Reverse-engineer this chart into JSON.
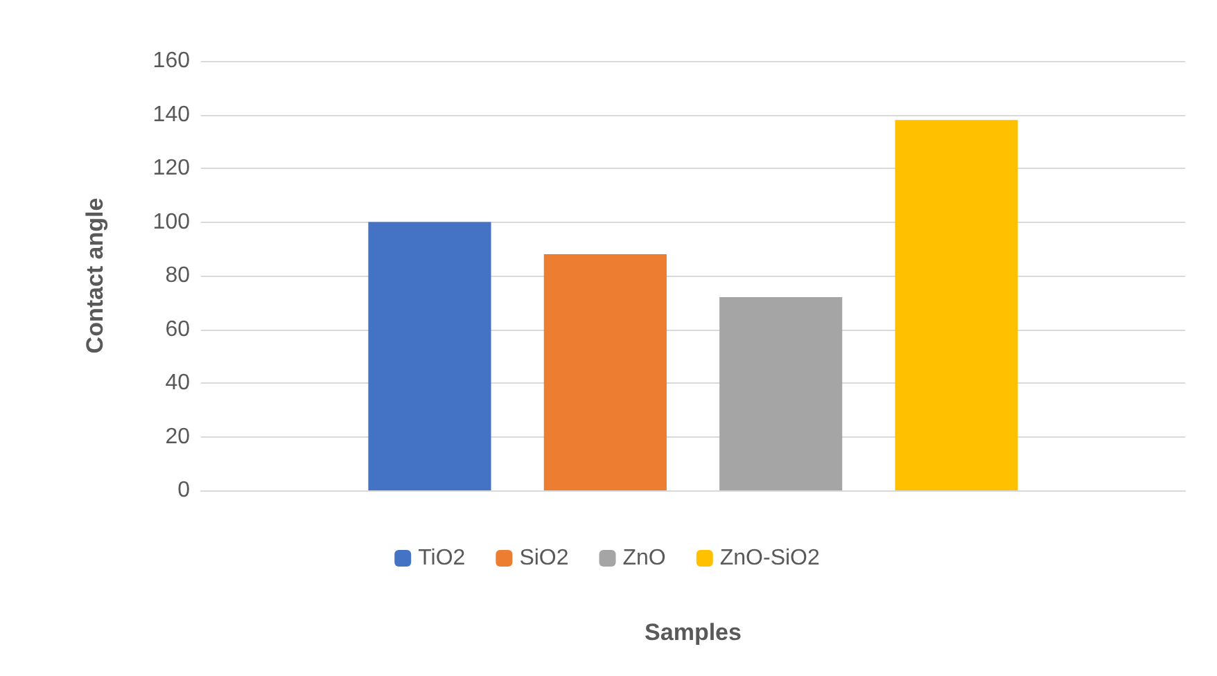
{
  "chart_data": {
    "type": "bar",
    "xlabel": "Samples",
    "ylabel": "Contact angle",
    "categories": [
      null
    ],
    "series": [
      {
        "name": "TiO2",
        "color": "#4472c4",
        "values": [
          100
        ]
      },
      {
        "name": "SiO2",
        "color": "#ed7d31",
        "values": [
          88
        ]
      },
      {
        "name": "ZnO",
        "color": "#a5a5a5",
        "values": [
          72
        ]
      },
      {
        "name": "ZnO-SiO2",
        "color": "#ffc000",
        "values": [
          138
        ]
      }
    ],
    "ylim": [
      0,
      160
    ],
    "yticks": [
      0,
      20,
      40,
      60,
      80,
      100,
      120,
      140,
      160
    ],
    "grid": "y",
    "legend": "bottom"
  }
}
